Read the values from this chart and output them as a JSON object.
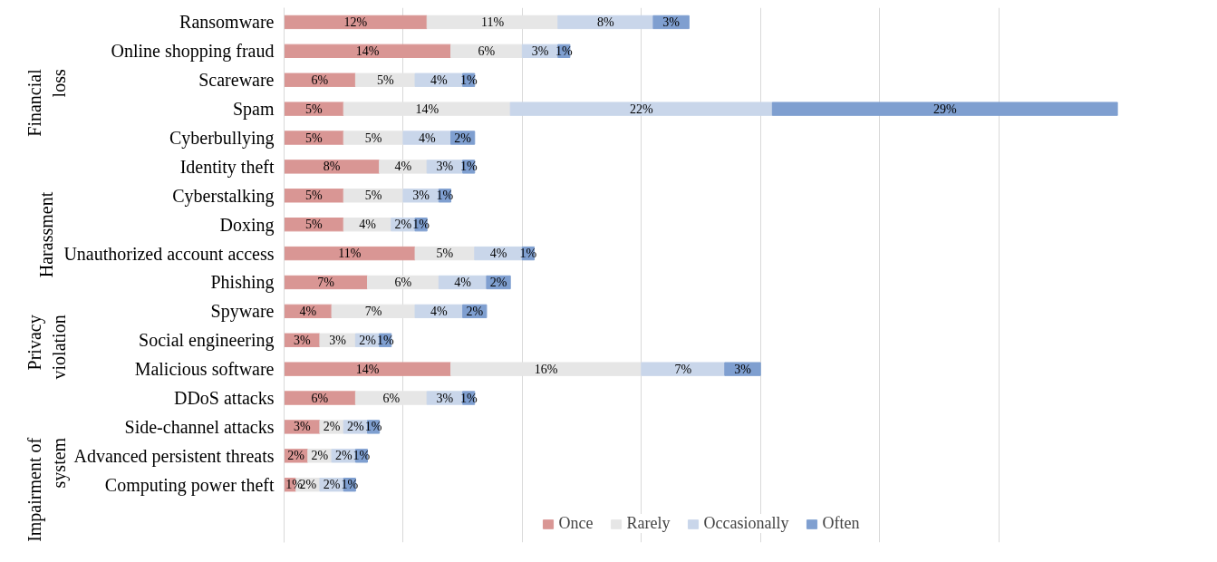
{
  "chart_data": {
    "type": "bar",
    "orientation": "horizontal",
    "stacked": true,
    "categories": [
      "Ransomware",
      "Online shopping fraud",
      "Scareware",
      "Spam",
      "Cyberbullying",
      "Identity theft",
      "Cyberstalking",
      "Doxing",
      "Unauthorized account access",
      "Phishing",
      "Spyware",
      "Social engineering",
      "Malicious software",
      "DDoS attacks",
      "Side-channel attacks",
      "Advanced persistent threats",
      "Computing power theft"
    ],
    "series": [
      {
        "name": "Once",
        "color": "#d99694",
        "values": [
          12,
          14,
          6,
          5,
          5,
          8,
          5,
          5,
          11,
          7,
          4,
          3,
          14,
          6,
          3,
          2,
          1
        ],
        "value_labels": [
          "12%",
          "14%",
          "6%",
          "5%",
          "5%",
          "8%",
          "5%",
          "5%",
          "11%",
          "7%",
          "4%",
          "3%",
          "14%",
          "6%",
          "3%",
          "2%",
          "1%"
        ]
      },
      {
        "name": "Rarely",
        "color": "#e6e6e6",
        "values": [
          11,
          6,
          5,
          14,
          5,
          4,
          5,
          4,
          5,
          6,
          7,
          3,
          16,
          6,
          2,
          2,
          2
        ],
        "value_labels": [
          "11%",
          "6%",
          "5%",
          "14%",
          "5%",
          "4%",
          "5%",
          "4%",
          "5%",
          "6%",
          "7%",
          "3%",
          "16%",
          "6%",
          "2%",
          "2%",
          "2%"
        ]
      },
      {
        "name": "Occasionally",
        "color": "#c9d6ea",
        "values": [
          8,
          3,
          4,
          22,
          4,
          3,
          3,
          2,
          4,
          4,
          4,
          2,
          7,
          3,
          2,
          2,
          2
        ],
        "value_labels": [
          "8%",
          "3%",
          "4%",
          "22%",
          "4%",
          "3%",
          "3%",
          "2%",
          "4%",
          "4%",
          "4%",
          "2%",
          "7%",
          "3%",
          "2%",
          "2%",
          "2%"
        ]
      },
      {
        "name": "Often",
        "color": "#7f9fd0",
        "values": [
          3,
          1,
          1,
          29,
          2,
          1,
          1,
          1,
          1,
          2,
          2,
          1,
          3,
          1,
          1,
          1,
          1
        ],
        "value_labels": [
          "3%",
          "1%",
          "1%",
          "29%",
          "2%",
          "1%",
          "1%",
          "1%",
          "1%",
          "2%",
          "2%",
          "1%",
          "3%",
          "1%",
          "1%",
          "1%",
          "1%"
        ]
      }
    ],
    "annotations": [
      "Financial loss",
      "Harassment",
      "Privacy violation",
      "Impairment of system"
    ],
    "grid": "x",
    "legend": "bottom",
    "tick_labels": "y"
  }
}
